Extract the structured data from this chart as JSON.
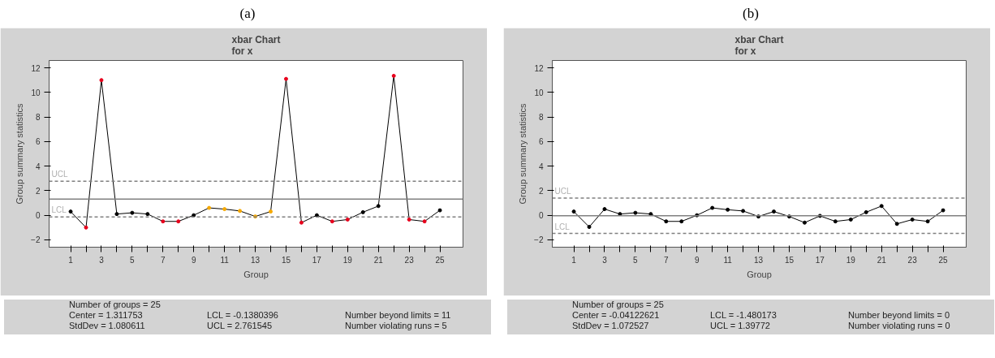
{
  "chart_data": [
    {
      "type": "line",
      "title": "(a)",
      "subtitle": "xbar Chart\nfor x",
      "xlabel": "Group",
      "ylabel": "Group summary statistics",
      "x": [
        1,
        2,
        3,
        4,
        5,
        6,
        7,
        8,
        9,
        10,
        11,
        12,
        13,
        14,
        15,
        16,
        17,
        18,
        19,
        20,
        21,
        22,
        23,
        24,
        25
      ],
      "series": [
        {
          "color": "#000000",
          "values": [
            0.3,
            -1.0,
            11.0,
            0.1,
            0.2,
            0.1,
            -0.5,
            -0.5,
            0.0,
            0.6,
            0.5,
            0.35,
            -0.1,
            0.3,
            11.1,
            -0.6,
            0.0,
            -0.5,
            -0.35,
            0.25,
            0.75,
            11.35,
            -0.35,
            -0.5,
            0.4
          ],
          "colors": [
            "#000000",
            "#e8001c",
            "#e8001c",
            "#000000",
            "#000000",
            "#000000",
            "#e8001c",
            "#e8001c",
            "#000000",
            "#f5a800",
            "#f5a800",
            "#f5a800",
            "#f5a800",
            "#f5a800",
            "#e8001c",
            "#e8001c",
            "#000000",
            "#e8001c",
            "#e8001c",
            "#000000",
            "#000000",
            "#e8001c",
            "#e8001c",
            "#e8001c",
            "#000000"
          ]
        }
      ],
      "marker": "circle",
      "grid": false,
      "xlim": [
        -0.4,
        26.5
      ],
      "xticks": [
        1,
        {
          "value": 2,
          "label": null
        },
        3,
        {
          "value": 4,
          "label": null
        },
        5,
        {
          "value": 6,
          "label": null
        },
        7,
        {
          "value": 8,
          "label": null
        },
        9,
        {
          "value": 10,
          "label": null
        },
        11,
        {
          "value": 12,
          "label": null
        },
        13,
        {
          "value": 14,
          "label": null
        },
        15,
        {
          "value": 16,
          "label": null
        },
        17,
        {
          "value": 18,
          "label": null
        },
        19,
        {
          "value": 20,
          "label": null
        },
        21,
        {
          "value": 22,
          "label": null
        },
        23,
        {
          "value": 24,
          "label": null
        },
        25
      ],
      "ylim": [
        -2.6,
        12.6
      ],
      "yticks": [
        -2,
        0,
        2,
        4,
        6,
        8,
        10,
        12
      ],
      "ref_lines": [
        {
          "axis": "y",
          "value": 1.311753,
          "color": "#808080",
          "line_style": "solid"
        },
        {
          "axis": "y",
          "value": 2.761545,
          "label": "UCL",
          "color": "#808080",
          "line_style": "dashed"
        },
        {
          "axis": "y",
          "value": -0.1380396,
          "label": "LCL",
          "color": "#808080",
          "line_style": "dashed"
        }
      ],
      "annotations": [
        "Number of groups = 25",
        "Center = 1.311753",
        "LCL = -0.1380396",
        "Number beyond limits = 11",
        "StdDev = 1.080611",
        "UCL = 2.761545",
        "Number violating runs = 5"
      ]
    },
    {
      "type": "line",
      "title": "(b)",
      "subtitle": "xbar Chart\nfor x",
      "xlabel": "Group",
      "ylabel": "Group summary statistics",
      "x": [
        1,
        2,
        3,
        4,
        5,
        6,
        7,
        8,
        9,
        10,
        11,
        12,
        13,
        14,
        15,
        16,
        17,
        18,
        19,
        20,
        21,
        22,
        23,
        24,
        25
      ],
      "series": [
        {
          "color": "#000000",
          "values": [
            0.3,
            -0.95,
            0.5,
            0.1,
            0.2,
            0.1,
            -0.5,
            -0.5,
            0.0,
            0.6,
            0.45,
            0.35,
            -0.1,
            0.3,
            -0.1,
            -0.6,
            -0.05,
            -0.5,
            -0.35,
            0.25,
            0.75,
            -0.7,
            -0.35,
            -0.5,
            0.4
          ]
        }
      ],
      "marker": "circle",
      "grid": false,
      "xlim": [
        -0.4,
        26.5
      ],
      "xticks": [
        1,
        {
          "value": 2,
          "label": null
        },
        3,
        {
          "value": 4,
          "label": null
        },
        5,
        {
          "value": 6,
          "label": null
        },
        7,
        {
          "value": 8,
          "label": null
        },
        9,
        {
          "value": 10,
          "label": null
        },
        11,
        {
          "value": 12,
          "label": null
        },
        13,
        {
          "value": 14,
          "label": null
        },
        15,
        {
          "value": 16,
          "label": null
        },
        17,
        {
          "value": 18,
          "label": null
        },
        19,
        {
          "value": 20,
          "label": null
        },
        21,
        {
          "value": 22,
          "label": null
        },
        23,
        {
          "value": 24,
          "label": null
        },
        25
      ],
      "ylim": [
        -2.6,
        12.6
      ],
      "yticks": [
        -2,
        0,
        2,
        4,
        6,
        8,
        10,
        12
      ],
      "ref_lines": [
        {
          "axis": "y",
          "value": -0.04122621,
          "color": "#808080",
          "line_style": "solid"
        },
        {
          "axis": "y",
          "value": 1.39772,
          "label": "UCL",
          "color": "#808080",
          "line_style": "dashed"
        },
        {
          "axis": "y",
          "value": -1.480173,
          "label": "LCL",
          "color": "#808080",
          "line_style": "dashed"
        }
      ],
      "annotations": [
        "Number of groups = 25",
        "Center = -0.04122621",
        "LCL = -1.480173",
        "Number beyond limits = 0",
        "StdDev = 1.072527",
        "UCL = 1.39772",
        "Number violating runs = 0"
      ]
    }
  ]
}
